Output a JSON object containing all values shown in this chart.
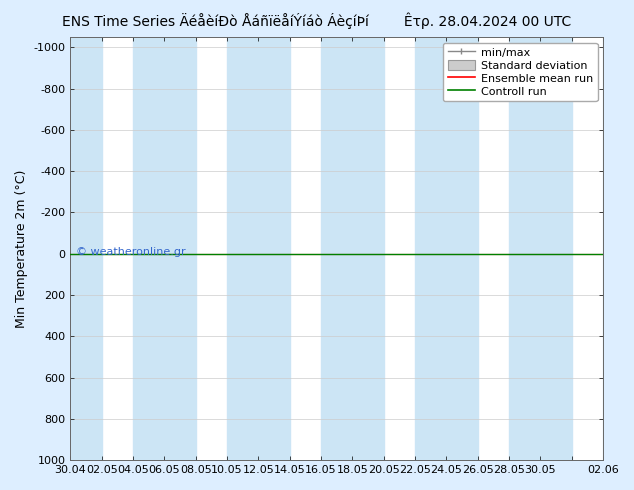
{
  "title_left": "ENS Time Series ÄéåèíÐò ÅáñïëåíÝíáò ÁèçíÞí",
  "title_right": "Êτρ. 28.04.2024 00 UTC",
  "ylabel": "Min Temperature 2m (°C)",
  "ylim_bottom": 1000,
  "ylim_top": -1050,
  "yticks": [
    -1000,
    -800,
    -600,
    -400,
    -200,
    0,
    200,
    400,
    600,
    800,
    1000
  ],
  "xlim_start": 0,
  "xlim_end": 34,
  "xtick_labels": [
    "30.04",
    "02.05",
    "04.05",
    "06.05",
    "08.05",
    "10.05",
    "12.05",
    "14.05",
    "16.05",
    "18.05",
    "20.05",
    "22.05",
    "24.05",
    "26.05",
    "28.05",
    "30.05",
    "",
    "02.06"
  ],
  "xtick_positions": [
    0,
    2,
    4,
    6,
    8,
    10,
    12,
    14,
    16,
    18,
    20,
    22,
    24,
    26,
    28,
    30,
    32,
    34
  ],
  "fig_bg_color": "#ddeeff",
  "plot_bg": "#ffffff",
  "band_color": "#cce5f5",
  "band_positions": [
    0,
    4,
    6,
    10,
    12,
    16,
    18,
    22,
    24,
    28,
    30,
    34
  ],
  "band_widths": [
    2,
    2,
    2,
    2,
    2,
    2,
    2,
    2,
    2,
    2,
    2,
    2
  ],
  "hline_y": 0,
  "hline_color_red": "#ff0000",
  "hline_color_green": "#008000",
  "legend_labels": [
    "min/max",
    "Standard deviation",
    "Ensemble mean run",
    "Controll run"
  ],
  "watermark": "© weatheronline.gr",
  "watermark_color": "#3366cc",
  "title_fontsize": 10,
  "axis_label_fontsize": 9,
  "tick_fontsize": 8,
  "legend_fontsize": 8
}
